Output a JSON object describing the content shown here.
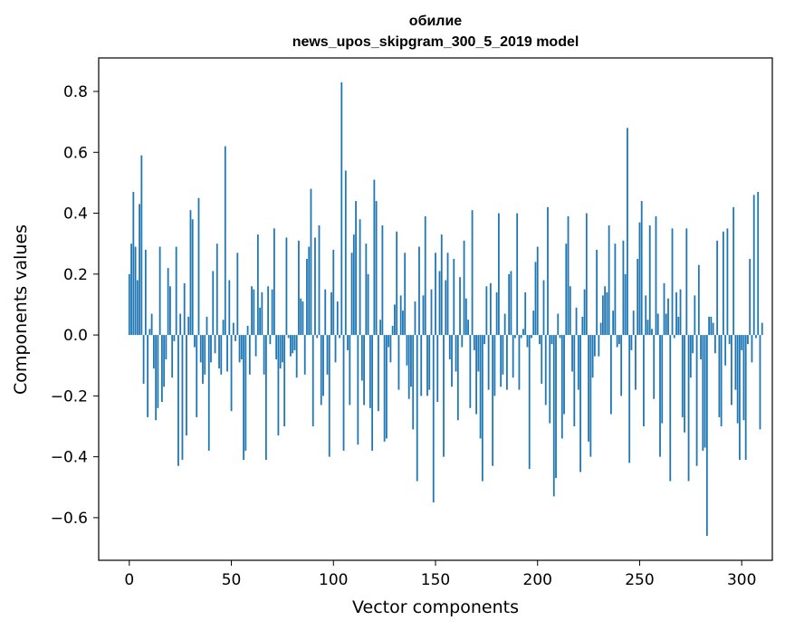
{
  "chart_data": {
    "type": "bar",
    "title": "обилие\nnews_upos_skipgram_300_5_2019 model",
    "title_lines": [
      "обилие",
      "news_upos_skipgram_300_5_2019 model"
    ],
    "xlabel": "Vector components",
    "ylabel": "Components values",
    "xlim": [
      -15,
      315
    ],
    "ylim": [
      -0.74,
      0.91
    ],
    "xticks": [
      0,
      50,
      100,
      150,
      200,
      250,
      300
    ],
    "xtick_labels": [
      "0",
      "50",
      "100",
      "150",
      "200",
      "250",
      "300"
    ],
    "yticks": [
      -0.6,
      -0.4,
      -0.2,
      0.0,
      0.2,
      0.4,
      0.6,
      0.8
    ],
    "ytick_labels": [
      "−0.6",
      "−0.4",
      "−0.2",
      "0.0",
      "0.2",
      "0.4",
      "0.6",
      "0.8"
    ],
    "bar_color": "#1f77b4",
    "grid": false,
    "values": [
      0.2,
      0.3,
      0.47,
      0.29,
      0.18,
      0.43,
      0.59,
      -0.16,
      0.28,
      -0.27,
      0.02,
      0.07,
      -0.11,
      -0.28,
      -0.24,
      0.29,
      -0.22,
      -0.17,
      -0.08,
      0.22,
      0.16,
      -0.14,
      -0.02,
      0.29,
      -0.43,
      0.07,
      -0.41,
      0.17,
      -0.33,
      0.06,
      0.41,
      0.38,
      -0.04,
      -0.27,
      0.45,
      -0.09,
      -0.16,
      -0.13,
      0.06,
      -0.38,
      -0.09,
      0.21,
      -0.06,
      0.3,
      -0.11,
      -0.13,
      0.05,
      0.62,
      -0.12,
      0.18,
      -0.25,
      0.04,
      -0.02,
      0.27,
      -0.09,
      -0.08,
      -0.41,
      -0.38,
      0.03,
      -0.13,
      0.16,
      0.15,
      -0.07,
      0.33,
      0.09,
      0.14,
      -0.13,
      -0.41,
      0.16,
      -0.03,
      0.15,
      0.35,
      -0.08,
      -0.33,
      -0.11,
      -0.09,
      -0.3,
      0.32,
      -0.01,
      -0.07,
      -0.06,
      -0.05,
      -0.14,
      0.31,
      0.12,
      0.11,
      -0.13,
      0.25,
      0.29,
      0.48,
      -0.3,
      0.32,
      -0.01,
      0.36,
      -0.23,
      -0.2,
      0.15,
      -0.13,
      -0.4,
      0.14,
      0.28,
      -0.09,
      0.11,
      -0.01,
      0.83,
      -0.38,
      0.54,
      -0.05,
      -0.23,
      0.27,
      0.33,
      0.44,
      -0.36,
      0.38,
      -0.15,
      -0.23,
      0.3,
      0.2,
      -0.24,
      -0.38,
      0.51,
      0.44,
      -0.25,
      0.05,
      0.36,
      -0.35,
      -0.34,
      -0.04,
      -0.09,
      0.03,
      0.1,
      0.34,
      -0.18,
      0.13,
      0.08,
      0.27,
      -0.1,
      -0.21,
      -0.17,
      -0.31,
      0.11,
      -0.48,
      0.29,
      -0.2,
      0.13,
      0.39,
      -0.2,
      -0.18,
      0.15,
      -0.55,
      0.27,
      -0.22,
      0.21,
      0.33,
      -0.4,
      0.18,
      0.27,
      -0.08,
      -0.17,
      0.25,
      -0.12,
      -0.28,
      0.19,
      -0.04,
      0.31,
      0.12,
      0.05,
      -0.24,
      0.41,
      -0.05,
      -0.26,
      -0.12,
      -0.34,
      -0.48,
      -0.03,
      0.16,
      -0.18,
      0.17,
      -0.43,
      -0.2,
      0.14,
      0.4,
      -0.17,
      -0.13,
      0.07,
      -0.18,
      0.2,
      0.21,
      -0.14,
      -0.01,
      0.4,
      -0.18,
      -0.01,
      0.02,
      0.14,
      -0.04,
      -0.44,
      -0.01,
      0.08,
      0.24,
      0.29,
      -0.03,
      -0.16,
      0.18,
      -0.23,
      0.42,
      -0.29,
      -0.03,
      -0.53,
      -0.47,
      0.07,
      -0.01,
      -0.34,
      -0.26,
      0.3,
      0.39,
      0.16,
      -0.12,
      -0.3,
      0.09,
      -0.18,
      -0.45,
      0.06,
      0.15,
      0.4,
      -0.35,
      -0.4,
      -0.14,
      -0.07,
      0.28,
      -0.07,
      0.04,
      0.13,
      0.16,
      0.14,
      0.36,
      -0.26,
      0.08,
      0.3,
      -0.04,
      -0.03,
      -0.2,
      0.31,
      0.2,
      0.68,
      -0.42,
      -0.05,
      0.08,
      -0.18,
      0.25,
      0.37,
      0.44,
      -0.3,
      0.13,
      0.05,
      0.36,
      0.02,
      -0.21,
      0.39,
      0.07,
      -0.4,
      -0.29,
      0.17,
      0.07,
      0.12,
      -0.48,
      0.35,
      -0.01,
      0.14,
      0.06,
      0.15,
      -0.27,
      -0.32,
      0.35,
      -0.48,
      -0.14,
      -0.06,
      0.13,
      -0.43,
      0.23,
      -0.08,
      -0.38,
      -0.37,
      -0.66,
      0.06,
      0.06,
      0.04,
      -0.06,
      0.31,
      -0.27,
      -0.3,
      0.34,
      -0.1,
      0.35,
      -0.03,
      -0.23,
      0.42,
      -0.18,
      -0.29,
      -0.41,
      -0.05,
      -0.28,
      -0.41,
      -0.03,
      0.25,
      -0.09,
      0.46,
      -0.01,
      0.47,
      -0.31,
      0.04
    ]
  }
}
